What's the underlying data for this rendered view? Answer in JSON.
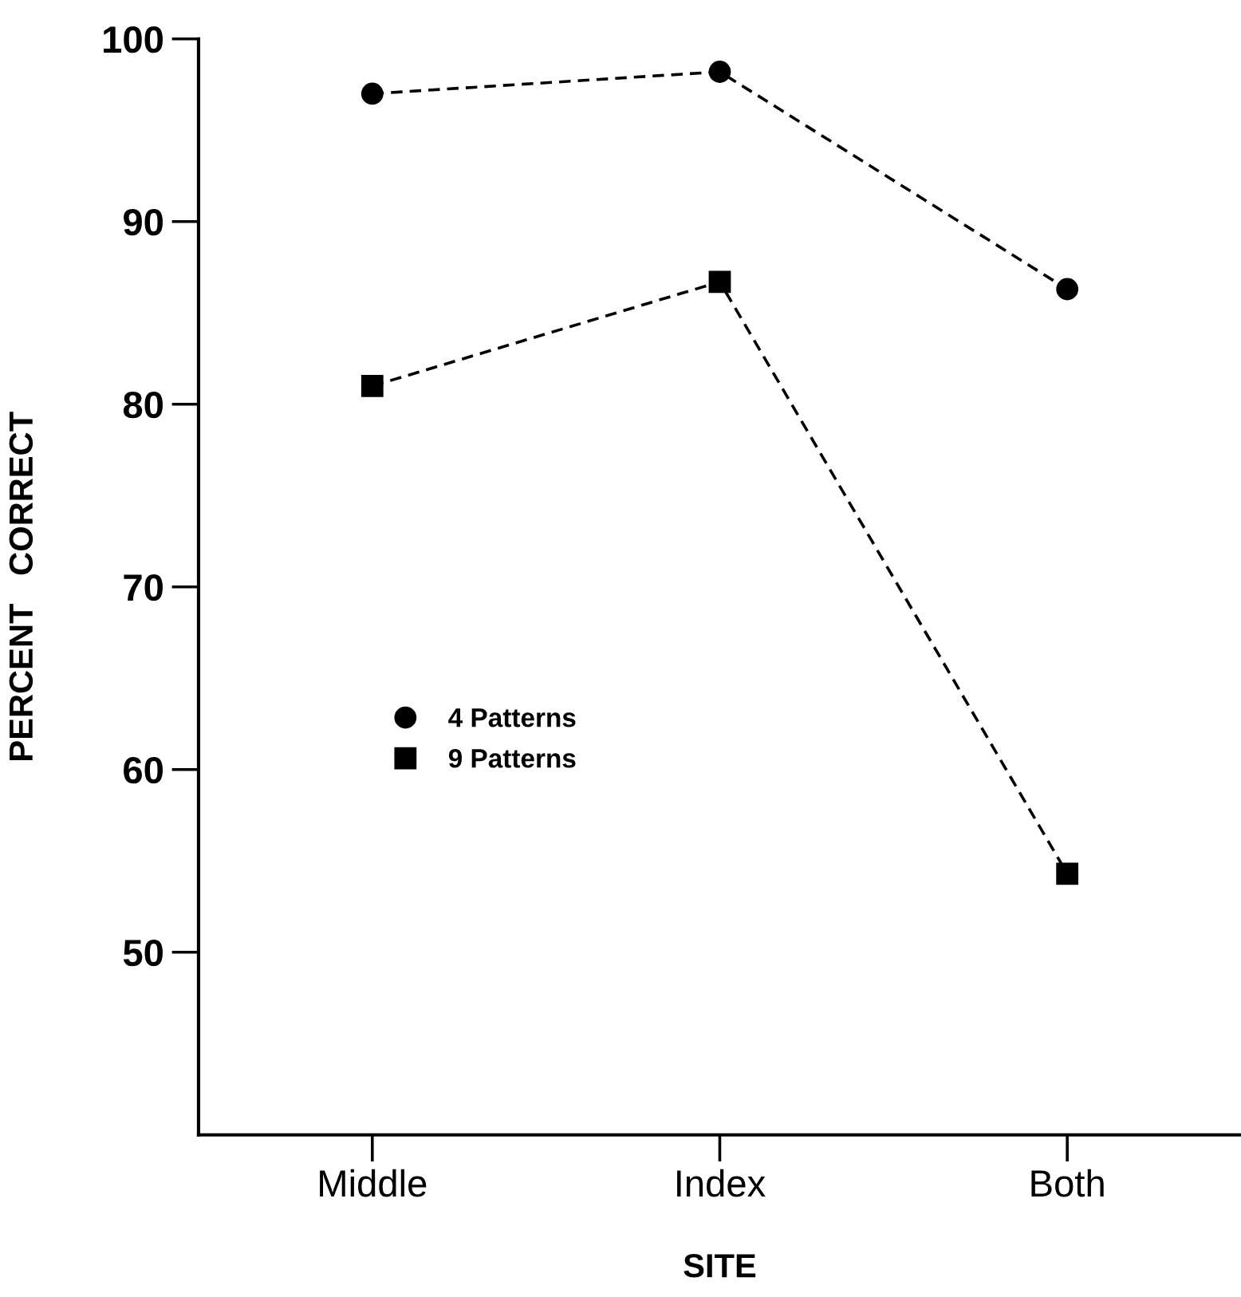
{
  "chart_data": {
    "type": "line",
    "xlabel": "SITE",
    "ylabel": "PERCENT   CORRECT",
    "categories": [
      "Middle",
      "Index",
      "Both"
    ],
    "series": [
      {
        "name": "4 Patterns",
        "color": "#000000",
        "marker": "circle",
        "values": [
          97,
          98.2,
          86.3
        ]
      },
      {
        "name": "9 Patterns",
        "color": "#000000",
        "marker": "square",
        "values": [
          81,
          86.7,
          54.3
        ]
      }
    ],
    "line_style": "dashed",
    "ylim": [
      40,
      100
    ],
    "yticks": [
      50,
      60,
      70,
      80,
      90,
      100
    ],
    "grid": false,
    "legend": "left"
  }
}
